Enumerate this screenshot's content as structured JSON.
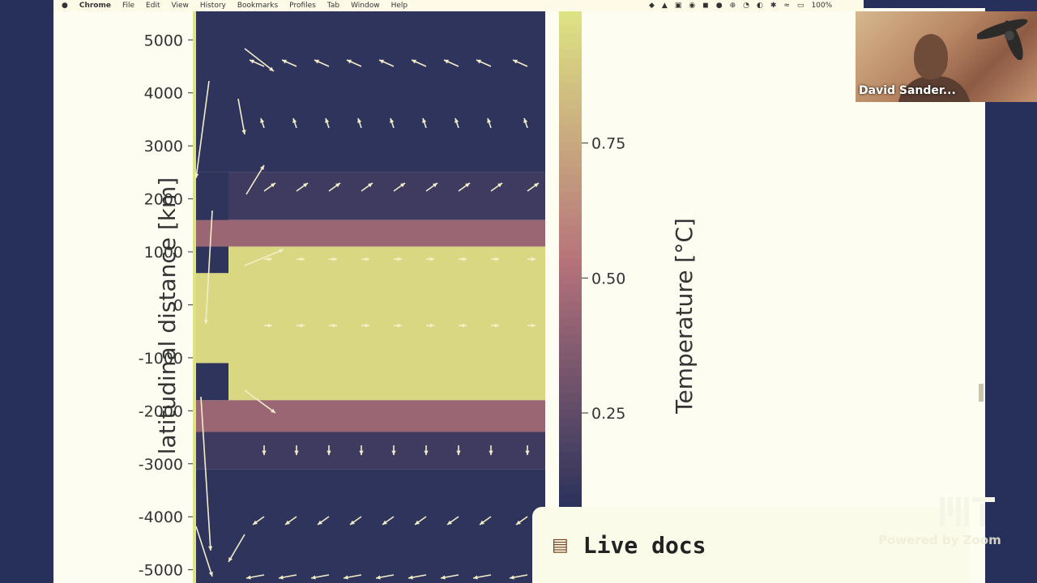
{
  "menubar": {
    "app": "Chrome",
    "items": [
      "File",
      "Edit",
      "View",
      "History",
      "Bookmarks",
      "Profiles",
      "Tab",
      "Window",
      "Help"
    ],
    "battery": "100%"
  },
  "chart_data": {
    "type": "heatmap",
    "title": "",
    "ylabel": "latitudinal distance [km]",
    "yticks": [
      5000,
      4000,
      3000,
      2000,
      1000,
      0,
      -1000,
      -2000,
      -3000,
      -4000,
      -5000
    ],
    "ylim": [
      -5250,
      5600
    ],
    "colorbar": {
      "label": "Temperature [°C]",
      "ticks": [
        0.75,
        0.5,
        0.25
      ],
      "range": [
        0.07,
        1.0
      ],
      "colors": [
        "#26305a",
        "#b5727a",
        "#dde383"
      ]
    },
    "bands": [
      {
        "y_range": [
          2500,
          5600
        ],
        "value": 0.1
      },
      {
        "y_range": [
          1600,
          2500
        ],
        "value": 0.15
      },
      {
        "y_range": [
          1100,
          1600
        ],
        "value": 0.45
      },
      {
        "y_range": [
          -1800,
          1100
        ],
        "value": 0.95
      },
      {
        "y_range": [
          -2400,
          -1800
        ],
        "value": 0.45
      },
      {
        "y_range": [
          -3100,
          -2400
        ],
        "value": 0.15
      },
      {
        "y_range": [
          -5250,
          -3100
        ],
        "value": 0.1
      }
    ]
  },
  "webcam": {
    "name": "David Sander..."
  },
  "livedocs": {
    "icon": "books-icon",
    "label": "Live docs"
  },
  "zoom": {
    "powered": "Powered by Zoom"
  }
}
